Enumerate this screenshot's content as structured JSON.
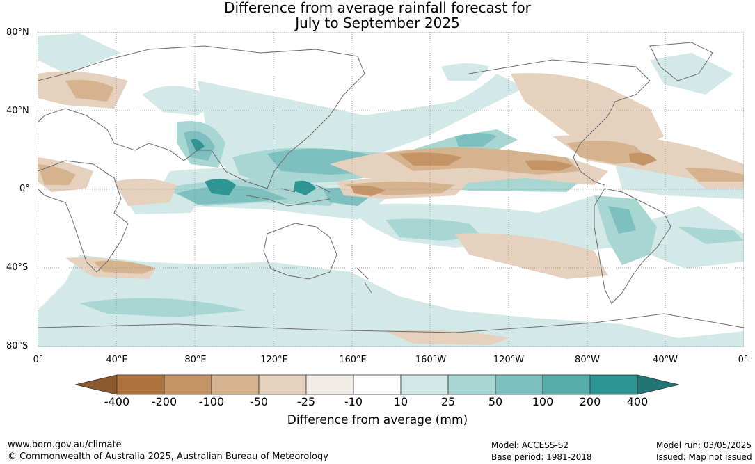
{
  "title_line1": "Difference from average rainfall forecast for",
  "title_line2": "July to September 2025",
  "lat_labels": [
    "80°N",
    "40°N",
    "0°",
    "40°S",
    "80°S"
  ],
  "lon_labels": [
    "0°",
    "40°E",
    "80°E",
    "120°E",
    "160°E",
    "160°W",
    "120°W",
    "80°W",
    "40°W",
    "0°"
  ],
  "colorbar": {
    "labels": [
      "-400",
      "-200",
      "-100",
      "-50",
      "-25",
      "-10",
      "10",
      "25",
      "50",
      "100",
      "200",
      "400"
    ],
    "colors": [
      "#8c5a2e",
      "#ad7440",
      "#c49467",
      "#d6b38f",
      "#e6d1bf",
      "#f2ece6",
      "#ffffff",
      "#d3e9e7",
      "#a8d6d3",
      "#7ebfbf",
      "#57acac",
      "#2d9694",
      "#217574"
    ],
    "unit_label": "Difference from average (mm)"
  },
  "footer": {
    "url": "www.bom.gov.au/climate",
    "copyright": "© Commonwealth of Australia 2025, Australian Bureau of Meteorology",
    "model": "Model: ACCESS-S2",
    "base_period": "Base period: 1981-2018",
    "model_run": "Model run: 03/05/2025",
    "issued": "Issued: Map not issued"
  }
}
